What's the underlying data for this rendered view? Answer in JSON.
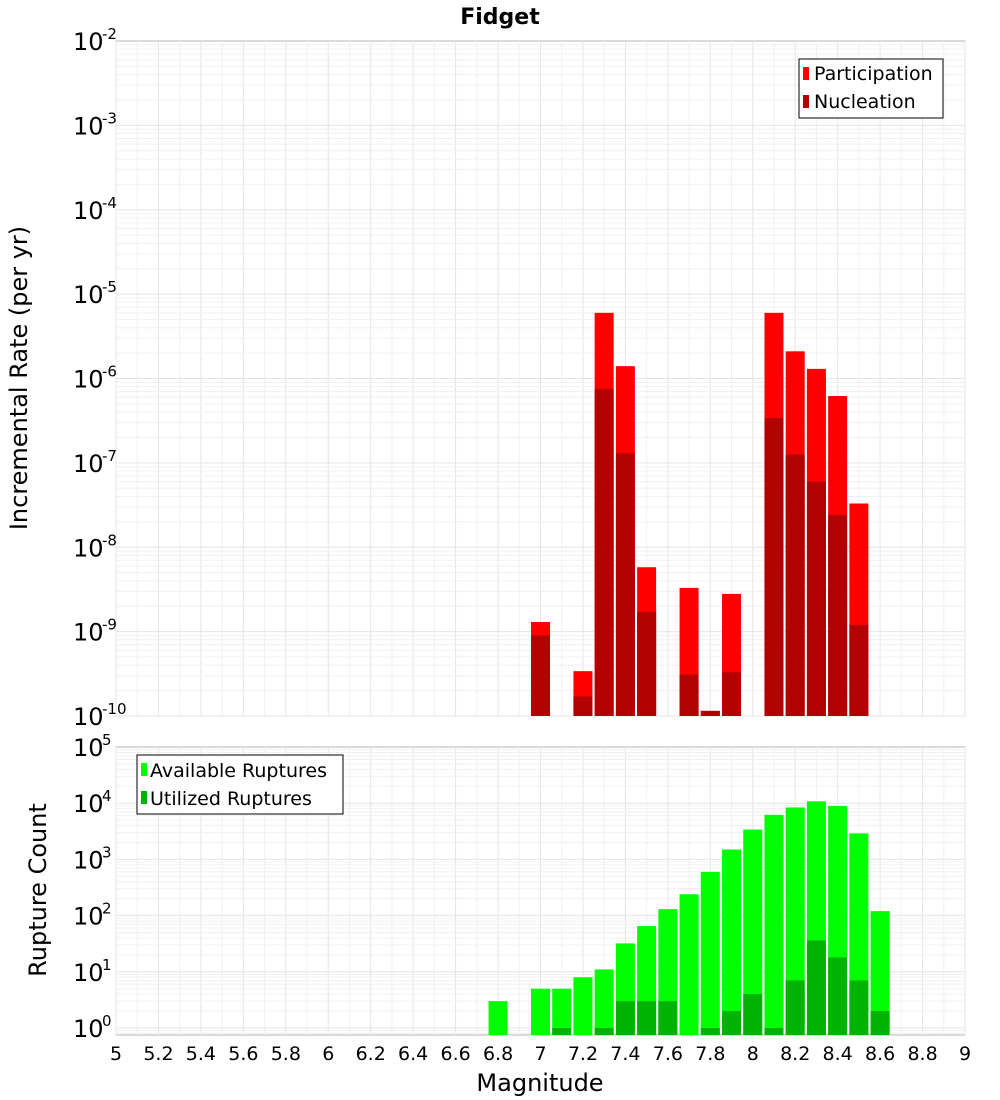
{
  "chart_data": [
    {
      "type": "bar",
      "title": "Fidget",
      "ylabel": "Incremental Rate (per yr)",
      "y_scale": "log",
      "ylim": [
        1e-10,
        0.01
      ],
      "xlim": [
        5,
        9
      ],
      "legend_position": "top-right",
      "grid": true,
      "x": [
        7.0,
        7.1,
        7.2,
        7.3,
        7.4,
        7.5,
        7.6,
        7.7,
        7.8,
        7.9,
        8.0,
        8.1,
        8.2,
        8.3,
        8.4,
        8.5,
        8.6
      ],
      "series": [
        {
          "name": "Participation",
          "color": "#ff0000",
          "values": [
            1.3e-09,
            null,
            3.4e-10,
            6e-06,
            1.4e-06,
            5.8e-09,
            null,
            3.3e-09,
            1.15e-10,
            2.8e-09,
            null,
            6e-06,
            2.1e-06,
            1.3e-06,
            6.2e-07,
            3.3e-08,
            null
          ]
        },
        {
          "name": "Nucleation",
          "color": "#b30000",
          "values": [
            9e-10,
            null,
            1.7e-10,
            7.5e-07,
            1.3e-07,
            1.7e-09,
            null,
            3.1e-10,
            1.15e-10,
            3.3e-10,
            null,
            3.4e-07,
            1.25e-07,
            6e-08,
            2.4e-08,
            1.2e-09,
            null
          ]
        }
      ]
    },
    {
      "type": "bar",
      "title": "",
      "xlabel": "Magnitude",
      "ylabel": "Rupture Count",
      "y_scale": "log",
      "ylim": [
        0.75,
        100000.0
      ],
      "xlim": [
        5,
        9
      ],
      "legend_position": "top-left",
      "grid": true,
      "x": [
        6.8,
        6.9,
        7.0,
        7.1,
        7.2,
        7.3,
        7.4,
        7.5,
        7.6,
        7.7,
        7.8,
        7.9,
        8.0,
        8.1,
        8.2,
        8.3,
        8.4,
        8.5,
        8.6
      ],
      "series": [
        {
          "name": "Available Ruptures",
          "color": "#00ff00",
          "values": [
            3,
            null,
            5,
            5,
            8,
            11,
            32,
            65,
            130,
            240,
            600,
            1500,
            3400,
            6200,
            8400,
            10800,
            8900,
            2900,
            120
          ]
        },
        {
          "name": "Utilized Ruptures",
          "color": "#00b300",
          "values": [
            null,
            null,
            null,
            1,
            null,
            1,
            3,
            3,
            3,
            null,
            1,
            2,
            4,
            1,
            7,
            36,
            18,
            7,
            2
          ]
        }
      ]
    }
  ],
  "x_tick_labels": [
    "5",
    "5.2",
    "5.4",
    "5.6",
    "5.8",
    "6",
    "6.2",
    "6.4",
    "6.6",
    "6.8",
    "7",
    "7.2",
    "7.4",
    "7.6",
    "7.8",
    "8",
    "8.2",
    "8.4",
    "8.6",
    "8.8",
    "9"
  ],
  "top_y_ticks": [
    {
      "base": "10",
      "exp": "-2"
    },
    {
      "base": "10",
      "exp": "-3"
    },
    {
      "base": "10",
      "exp": "-4"
    },
    {
      "base": "10",
      "exp": "-5"
    },
    {
      "base": "10",
      "exp": "-6"
    },
    {
      "base": "10",
      "exp": "-7"
    },
    {
      "base": "10",
      "exp": "-8"
    },
    {
      "base": "10",
      "exp": "-9"
    },
    {
      "base": "10",
      "exp": "-10"
    }
  ],
  "bottom_y_ticks": [
    {
      "base": "10",
      "exp": "5"
    },
    {
      "base": "10",
      "exp": "4"
    },
    {
      "base": "10",
      "exp": "3"
    },
    {
      "base": "10",
      "exp": "2"
    },
    {
      "base": "10",
      "exp": "1"
    },
    {
      "base": "10",
      "exp": "0"
    }
  ]
}
